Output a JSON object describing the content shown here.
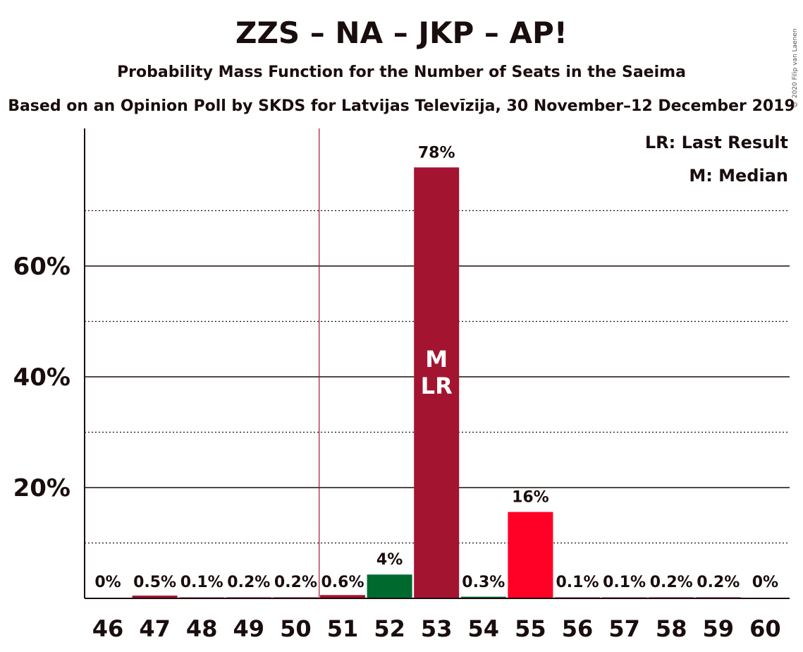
{
  "chart_data": {
    "type": "bar",
    "title": "ZZS – NA – JKP – AP!",
    "subtitle": "Probability Mass Function for the Number of Seats in the Saeima",
    "subtitle2": "Based on an Opinion Poll by SKDS for Latvijas Televīzija, 30 November–12 December 2019",
    "copyright": "© 2020 Filip van Laenen",
    "categories": [
      "46",
      "47",
      "48",
      "49",
      "50",
      "51",
      "52",
      "53",
      "54",
      "55",
      "56",
      "57",
      "58",
      "59",
      "60"
    ],
    "values": [
      0,
      0.5,
      0.1,
      0.2,
      0.2,
      0.6,
      4.3,
      77.8,
      0.3,
      15.6,
      0.1,
      0.1,
      0.2,
      0.2,
      0
    ],
    "value_labels": [
      "0%",
      "0.5%",
      "0.1%",
      "0.2%",
      "0.2%",
      "0.6%",
      "4%",
      "78%",
      "0.3%",
      "16%",
      "0.1%",
      "0.1%",
      "0.2%",
      "0.2%",
      "0%"
    ],
    "bar_colors": [
      "#a31431",
      "#a31431",
      "#a31431",
      "#a31431",
      "#a31431",
      "#a31431",
      "#006a2e",
      "#a31431",
      "#006a2e",
      "#ff0026",
      "#a31431",
      "#a31431",
      "#a31431",
      "#a31431",
      "#a31431"
    ],
    "y_ticks": [
      20,
      40,
      60
    ],
    "y_tick_labels": [
      "20%",
      "40%",
      "60%"
    ],
    "minor_gridlines": [
      10,
      30,
      50,
      70
    ],
    "ylim": [
      0,
      85
    ],
    "last_result_seat": "53",
    "last_result_line_seat": 50.5,
    "median_seat": "53",
    "bar_marks": {
      "M": "M",
      "LR": "LR"
    },
    "legend": {
      "placement": "top-right",
      "lr": "LR: Last Result",
      "m": "M: Median"
    }
  }
}
